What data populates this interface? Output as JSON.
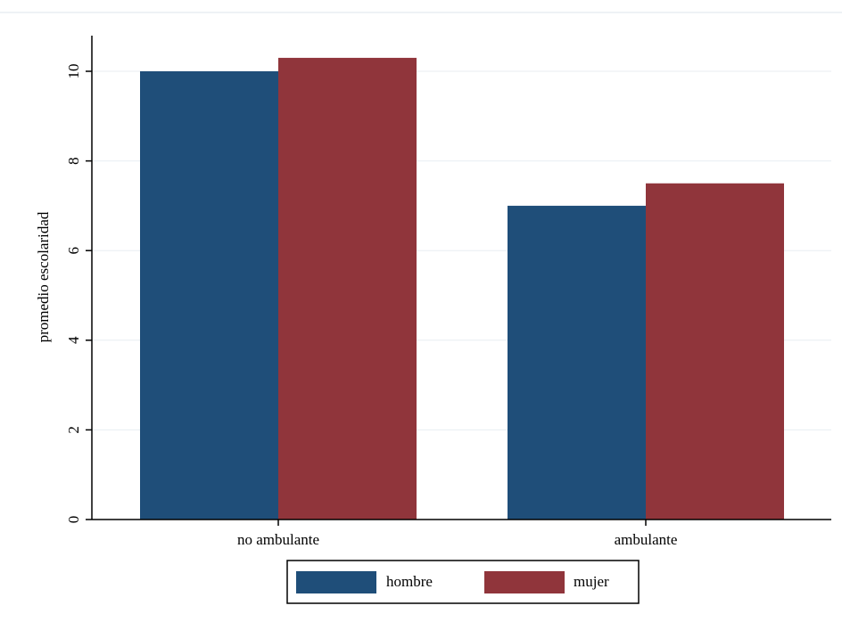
{
  "chart_data": {
    "type": "bar",
    "categories": [
      "no ambulante",
      "ambulante"
    ],
    "series": [
      {
        "name": "hombre",
        "values": [
          10.0,
          7.0
        ],
        "color": "#1f4e79"
      },
      {
        "name": "mujer",
        "values": [
          10.3,
          7.5
        ],
        "color": "#90353b"
      }
    ],
    "ylabel": "promedio escolaridad",
    "xlabel": "",
    "ylim": [
      0,
      10.8
    ],
    "yticks": [
      0,
      2,
      4,
      6,
      8,
      10
    ],
    "grid": true,
    "legend_position": "bottom"
  }
}
